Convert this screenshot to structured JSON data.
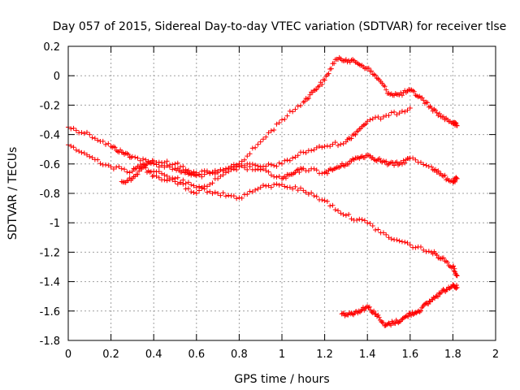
{
  "chart_data": {
    "type": "scatter",
    "title": "Day 057 of 2015, Sidereal Day-to-day VTEC variation (SDTVAR) for receiver tlse",
    "xlabel": "GPS time / hours",
    "ylabel": "SDTVAR / TECUs",
    "xlim": [
      0,
      2
    ],
    "ylim": [
      -1.8,
      0.2
    ],
    "xticks": [
      0,
      0.2,
      0.4,
      0.6,
      0.8,
      1,
      1.2,
      1.4,
      1.6,
      1.8,
      2
    ],
    "xtick_labels": [
      "0",
      "0.2",
      "0.4",
      "0.6",
      "0.8",
      "1",
      "1.2",
      "1.4",
      "1.6",
      "1.8",
      "2"
    ],
    "yticks": [
      0.2,
      0,
      -0.2,
      -0.4,
      -0.6,
      -0.8,
      -1,
      -1.2,
      -1.4,
      -1.6,
      -1.8
    ],
    "ytick_labels": [
      "0.2",
      "0",
      "-0.2",
      "-0.4",
      "-0.6",
      "-0.8",
      "-1",
      "-1.2",
      "-1.4",
      "-1.6",
      "-1.8"
    ],
    "grid": true,
    "marker": "+",
    "color": "#ff0000",
    "series": [
      {
        "x": [
          0.0,
          0.1,
          0.2,
          0.25,
          0.3,
          0.4,
          0.5,
          0.55,
          0.6,
          0.7,
          0.8,
          0.9,
          1.0,
          1.1,
          1.15,
          1.2,
          1.25,
          1.3,
          1.35,
          1.4,
          1.45,
          1.5,
          1.55,
          1.6,
          1.65,
          1.7,
          1.75,
          1.8,
          1.82
        ],
        "y": [
          -0.35,
          -0.4,
          -0.48,
          -0.52,
          -0.55,
          -0.6,
          -0.63,
          -0.66,
          -0.68,
          -0.66,
          -0.6,
          -0.45,
          -0.3,
          -0.18,
          -0.1,
          -0.03,
          0.11,
          0.11,
          0.09,
          0.05,
          -0.02,
          -0.12,
          -0.13,
          -0.1,
          -0.15,
          -0.22,
          -0.28,
          -0.32,
          -0.34
        ]
      },
      {
        "x": [
          0.0,
          0.1,
          0.2,
          0.3,
          0.35,
          0.4,
          0.5,
          0.6,
          0.7,
          0.8,
          0.9,
          1.0,
          1.1,
          1.2,
          1.3,
          1.35,
          1.4,
          1.5,
          1.6
        ],
        "y": [
          -0.47,
          -0.55,
          -0.62,
          -0.65,
          -0.6,
          -0.58,
          -0.6,
          -0.66,
          -0.65,
          -0.6,
          -0.62,
          -0.6,
          -0.52,
          -0.48,
          -0.45,
          -0.38,
          -0.31,
          -0.27,
          -0.22
        ]
      },
      {
        "x": [
          0.25,
          0.3,
          0.35,
          0.4,
          0.5,
          0.6,
          0.7,
          0.8,
          0.9,
          1.0,
          1.05,
          1.1,
          1.2,
          1.25,
          1.3,
          1.35,
          1.4,
          1.45,
          1.5,
          1.55,
          1.6,
          1.7,
          1.75,
          1.8,
          1.82
        ],
        "y": [
          -0.72,
          -0.7,
          -0.62,
          -0.68,
          -0.72,
          -0.8,
          -0.7,
          -0.62,
          -0.64,
          -0.7,
          -0.67,
          -0.63,
          -0.66,
          -0.63,
          -0.6,
          -0.56,
          -0.54,
          -0.57,
          -0.6,
          -0.6,
          -0.56,
          -0.62,
          -0.68,
          -0.72,
          -0.7
        ]
      },
      {
        "x": [
          0.4,
          0.5,
          0.6,
          0.7,
          0.8,
          0.9,
          1.0,
          1.1,
          1.2,
          1.3,
          1.4,
          1.5,
          1.6,
          1.7,
          1.75,
          1.8,
          1.82
        ],
        "y": [
          -0.65,
          -0.7,
          -0.76,
          -0.8,
          -0.83,
          -0.76,
          -0.74,
          -0.78,
          -0.85,
          -0.95,
          -1.0,
          -1.1,
          -1.15,
          -1.2,
          -1.24,
          -1.3,
          -1.36
        ]
      },
      {
        "x": [
          1.28,
          1.32,
          1.36,
          1.4,
          1.44,
          1.48,
          1.52,
          1.56,
          1.6,
          1.64,
          1.68,
          1.72,
          1.76,
          1.8,
          1.82
        ],
        "y": [
          -1.62,
          -1.62,
          -1.6,
          -1.57,
          -1.62,
          -1.7,
          -1.68,
          -1.66,
          -1.62,
          -1.6,
          -1.55,
          -1.5,
          -1.46,
          -1.42,
          -1.44
        ]
      }
    ]
  }
}
